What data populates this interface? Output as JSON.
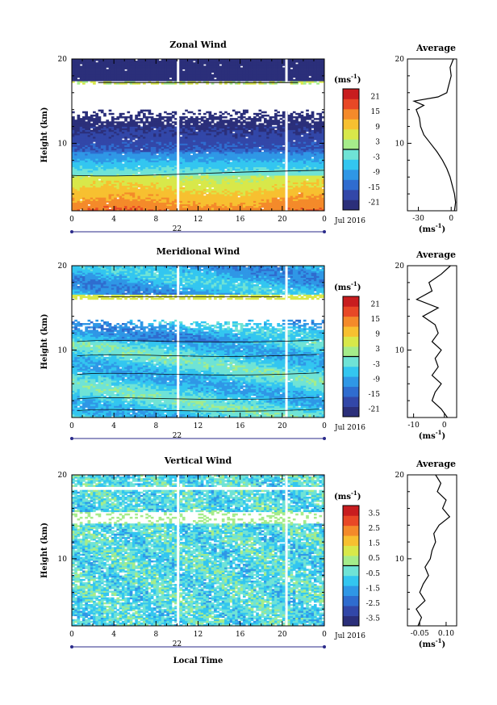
{
  "colors": {
    "scale": [
      "#2b2f7a",
      "#3247a8",
      "#2f6ccf",
      "#2f97e6",
      "#33c6f0",
      "#6fe3d6",
      "#a5ec8a",
      "#d8e84a",
      "#f7c030",
      "#f48a2a",
      "#e84826",
      "#c81d1f"
    ],
    "zero_line": "#000000",
    "gap": "#ffffff"
  },
  "chart_data": [
    {
      "type": "heatmap",
      "title": "Zonal Wind",
      "ylabel": "Height (km)",
      "y_ticks": [
        "10",
        "20"
      ],
      "ylim": [
        2,
        20
      ],
      "x_ticks": [
        "0",
        "4",
        "8",
        "12",
        "16",
        "20",
        "0"
      ],
      "xlim": [
        0,
        24
      ],
      "date_day": "22",
      "date_label": "Jul 2016",
      "data_gaps_local_time": [
        10.1,
        20.4
      ],
      "colorbar": {
        "unit_base": "(ms",
        "unit_exp": "-1",
        "unit_close": ")",
        "ticks": [
          "21",
          "15",
          "9",
          "3",
          "-3",
          "-9",
          "-15",
          "-21"
        ],
        "range": [
          -24,
          24
        ]
      },
      "profile": {
        "title": "Average",
        "x_ticks": [
          "-30",
          "0"
        ],
        "xlim": [
          -40,
          5
        ],
        "unit_base": "(ms",
        "unit_exp": "-1",
        "unit_close": ")",
        "y_ticks": [
          "10",
          "20"
        ],
        "height": [
          2,
          3,
          4,
          5,
          6,
          7,
          8,
          9,
          10,
          11,
          12,
          13,
          14,
          14.5,
          15,
          15.5,
          16,
          17,
          18,
          19,
          20
        ],
        "value": [
          3,
          4,
          3,
          1,
          -1,
          -4,
          -8,
          -13,
          -19,
          -25,
          -28,
          -29,
          -32,
          -25,
          -34,
          -12,
          -4,
          -2,
          0,
          -1,
          2
        ]
      }
    },
    {
      "type": "heatmap",
      "title": "Meridional Wind",
      "ylabel": "Height (km)",
      "y_ticks": [
        "10",
        "20"
      ],
      "ylim": [
        2,
        20
      ],
      "x_ticks": [
        "0",
        "4",
        "8",
        "12",
        "16",
        "20",
        "0"
      ],
      "xlim": [
        0,
        24
      ],
      "date_day": "22",
      "date_label": "Jul 2016",
      "data_gaps_local_time": [
        10.1,
        20.4
      ],
      "colorbar": {
        "unit_base": "(ms",
        "unit_exp": "-1",
        "unit_close": ")",
        "ticks": [
          "21",
          "15",
          "9",
          "3",
          "-3",
          "-9",
          "-15",
          "-21"
        ],
        "range": [
          -24,
          24
        ]
      },
      "profile": {
        "title": "Average",
        "x_ticks": [
          "-10",
          "0"
        ],
        "xlim": [
          -12,
          4
        ],
        "unit_base": "(ms",
        "unit_exp": "-1",
        "unit_close": ")",
        "y_ticks": [
          "10",
          "20"
        ],
        "height": [
          2,
          3,
          4,
          5,
          6,
          7,
          8,
          9,
          10,
          11,
          12,
          13,
          14,
          15,
          16,
          17,
          18,
          19,
          20
        ],
        "value": [
          1,
          -1,
          -4,
          -3,
          -1,
          -4,
          -2,
          -3,
          -1,
          -4,
          -2,
          -3,
          -7,
          -2,
          -9,
          -4,
          -5,
          -1,
          2
        ]
      }
    },
    {
      "type": "heatmap",
      "title": "Vertical Wind",
      "ylabel": "Height (km)",
      "xlabel": "Local Time",
      "y_ticks": [
        "10",
        "20"
      ],
      "ylim": [
        2,
        20
      ],
      "x_ticks": [
        "0",
        "4",
        "8",
        "12",
        "16",
        "20",
        "0"
      ],
      "xlim": [
        0,
        24
      ],
      "date_day": "22",
      "date_label": "Jul 2016",
      "data_gaps_local_time": [
        10.1,
        20.4
      ],
      "colorbar": {
        "unit_base": "(ms",
        "unit_exp": "-1",
        "unit_close": ")",
        "ticks": [
          "3.5",
          "2.5",
          "1.5",
          "0.5",
          "-0.5",
          "-1.5",
          "-2.5",
          "-3.5"
        ],
        "range": [
          -4,
          4
        ]
      },
      "profile": {
        "title": "Average",
        "x_ticks": [
          "-0.05",
          "0.10"
        ],
        "xlim": [
          -0.12,
          0.16
        ],
        "unit_base": "(ms",
        "unit_exp": "-1",
        "unit_close": ")",
        "y_ticks": [
          "10",
          "20"
        ],
        "height": [
          2,
          3,
          4,
          5,
          6,
          7,
          8,
          9,
          10,
          11,
          12,
          13,
          14,
          15,
          16,
          17,
          18,
          19,
          20
        ],
        "value": [
          -0.06,
          -0.04,
          -0.07,
          -0.02,
          -0.05,
          -0.03,
          0.0,
          -0.02,
          0.01,
          0.02,
          0.04,
          0.03,
          0.06,
          0.12,
          0.08,
          0.1,
          0.05,
          0.07,
          0.04
        ]
      }
    }
  ]
}
